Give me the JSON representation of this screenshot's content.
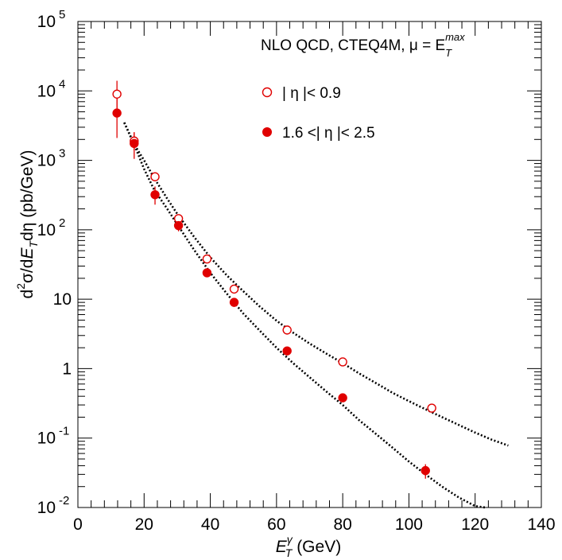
{
  "chart_data": {
    "type": "scatter",
    "title": "",
    "xlabel": {
      "symbol": "E",
      "superscript": "γ",
      "subscript": "T",
      "unit": " (GeV)"
    },
    "ylabel": {
      "d2": "d",
      "exp2": "2",
      "mid": "σ/d",
      "E": "E",
      "T": "T",
      "tail": "dη (pb/GeV)"
    },
    "xlim": [
      0,
      140
    ],
    "ylim": [
      0.01,
      100000
    ],
    "yscale": "log",
    "grid": false,
    "x_tick_labels": [
      "0",
      "20",
      "40",
      "60",
      "80",
      "100",
      "120",
      "140"
    ],
    "y_tick_labels": [
      {
        "value": 100000,
        "base": "10",
        "exp": "5"
      },
      {
        "value": 10000,
        "base": "10",
        "exp": "4"
      },
      {
        "value": 1000,
        "base": "10",
        "exp": "3"
      },
      {
        "value": 100,
        "base": "10",
        "exp": "2"
      },
      {
        "value": 10,
        "base": "10",
        "exp": ""
      },
      {
        "value": 1,
        "base": "1",
        "exp": ""
      },
      {
        "value": 0.1,
        "base": "10",
        "exp": "-1"
      },
      {
        "value": 0.01,
        "base": "10",
        "exp": "-2"
      }
    ],
    "legend": {
      "placement": "top-right",
      "header": "NLO QCD, CTEQ4M, μ = E",
      "header_sub": "T",
      "header_sup": "max"
    },
    "series": [
      {
        "name": "| η |< 0.9",
        "marker": "open-circle",
        "color": "#e00000",
        "x": [
          11.8,
          17.0,
          23.3,
          30.4,
          39.0,
          47.2,
          63.2,
          80.0,
          106.9
        ],
        "y": [
          9000,
          1900,
          580,
          145,
          38,
          14,
          3.6,
          1.25,
          0.27
        ],
        "yerr_low": [
          4000,
          500,
          80,
          18,
          4,
          1.4,
          0.35,
          0.12,
          0.03
        ],
        "yerr_high": [
          5000,
          600,
          90,
          20,
          4,
          1.5,
          0.4,
          0.13,
          0.03
        ]
      },
      {
        "name": "1.6 <| η |< 2.5",
        "marker": "filled-circle",
        "color": "#e00000",
        "x": [
          11.8,
          17.0,
          23.3,
          30.4,
          39.0,
          47.2,
          63.2,
          80.0,
          105.0
        ],
        "y": [
          4800,
          1750,
          320,
          115,
          24,
          9,
          1.8,
          0.38,
          0.034
        ],
        "yerr_low": [
          2700,
          700,
          90,
          20,
          3,
          1,
          0.2,
          0.05,
          0.008
        ],
        "yerr_high": [
          4000,
          800,
          100,
          22,
          3,
          1,
          0.2,
          0.05,
          0.008
        ]
      }
    ],
    "curves": [
      {
        "name": "NLO QCD |η|<0.9",
        "style": "dotted",
        "color": "#000000",
        "x": [
          14,
          17,
          20,
          23,
          27,
          30,
          35,
          40,
          45,
          50,
          55,
          60,
          65,
          70,
          75,
          80,
          85,
          90,
          95,
          100,
          105,
          110,
          115,
          120,
          125,
          130
        ],
        "y": [
          3500,
          1700,
          1000,
          560,
          280,
          170,
          80,
          40,
          22,
          13,
          7.8,
          4.9,
          3.3,
          2.3,
          1.65,
          1.2,
          0.85,
          0.62,
          0.45,
          0.34,
          0.26,
          0.2,
          0.155,
          0.12,
          0.095,
          0.078
        ]
      },
      {
        "name": "NLO QCD 1.6<|η|<2.5",
        "style": "dotted",
        "color": "#000000",
        "x": [
          14,
          17,
          20,
          23,
          27,
          30,
          35,
          40,
          45,
          50,
          55,
          60,
          65,
          70,
          75,
          80,
          85,
          90,
          95,
          100,
          105,
          110,
          115,
          120,
          123
        ],
        "y": [
          3500,
          1700,
          750,
          380,
          200,
          120,
          52,
          24,
          12,
          6.2,
          3.5,
          2.0,
          1.2,
          0.75,
          0.47,
          0.3,
          0.18,
          0.115,
          0.073,
          0.046,
          0.03,
          0.02,
          0.014,
          0.0105,
          0.0088
        ]
      }
    ]
  }
}
